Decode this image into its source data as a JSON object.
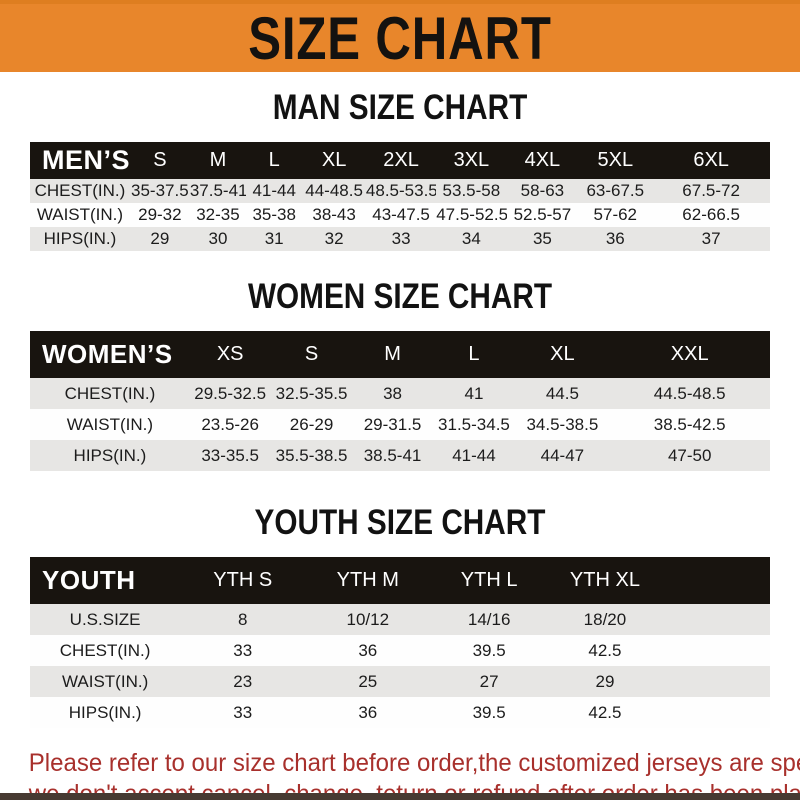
{
  "banner": {
    "title": "SIZE CHART"
  },
  "sections": [
    {
      "heading": "MAN SIZE CHART",
      "table": {
        "header": [
          "MEN’S",
          "S",
          "M",
          "L",
          "XL",
          "2XL",
          "3XL",
          "4XL",
          "5XL",
          "6XL"
        ],
        "rows": [
          {
            "label": "CHEST(IN.)",
            "values": [
              "35-37.5",
              "37.5-41",
              "41-44",
              "44-48.5",
              "48.5-53.5",
              "53.5-58",
              "58-63",
              "63-67.5",
              "67.5-72"
            ]
          },
          {
            "label": "WAIST(IN.)",
            "values": [
              "29-32",
              "32-35",
              "35-38",
              "38-43",
              "43-47.5",
              "47.5-52.5",
              "52.5-57",
              "57-62",
              "62-66.5"
            ]
          },
          {
            "label": "HIPS(IN.)",
            "values": [
              "29",
              "30",
              "31",
              "32",
              "33",
              "34",
              "35",
              "36",
              "37"
            ]
          }
        ]
      }
    },
    {
      "heading": "WOMEN SIZE CHART",
      "table": {
        "header": [
          "WOMEN’S",
          "XS",
          "S",
          "M",
          "L",
          "XL",
          "XXL"
        ],
        "rows": [
          {
            "label": "CHEST(IN.)",
            "values": [
              "29.5-32.5",
              "32.5-35.5",
              "38",
              "41",
              "44.5",
              "44.5-48.5"
            ]
          },
          {
            "label": "WAIST(IN.)",
            "values": [
              "23.5-26",
              "26-29",
              "29-31.5",
              "31.5-34.5",
              "34.5-38.5",
              "38.5-42.5"
            ]
          },
          {
            "label": "HIPS(IN.)",
            "values": [
              "33-35.5",
              "35.5-38.5",
              "38.5-41",
              "41-44",
              "44-47",
              "47-50"
            ]
          }
        ]
      }
    },
    {
      "heading": "YOUTH SIZE CHART",
      "table": {
        "header": [
          "YOUTH",
          "YTH S",
          "YTH M",
          "YTH L",
          "YTH XL"
        ],
        "rows": [
          {
            "label": "U.S.SIZE",
            "values": [
              "8",
              "10/12",
              "14/16",
              "18/20"
            ]
          },
          {
            "label": "CHEST(IN.)",
            "values": [
              "33",
              "36",
              "39.5",
              "42.5"
            ]
          },
          {
            "label": "WAIST(IN.)",
            "values": [
              "23",
              "25",
              "27",
              "29"
            ]
          },
          {
            "label": "HIPS(IN.)",
            "values": [
              "33",
              "36",
              "39.5",
              "42.5"
            ]
          }
        ]
      }
    }
  ],
  "footer": {
    "line1": "Please refer to our size chart before order,the customized jerseys are special products,",
    "line2": "we don't accept cancel, change, teturn or refund after order has been placed!"
  },
  "colors": {
    "banner_bg": "#E8862B",
    "header_bg": "#18140F",
    "row_gray": "#E7E6E4",
    "footer_red": "#A8302C",
    "strip": "#473A32"
  }
}
